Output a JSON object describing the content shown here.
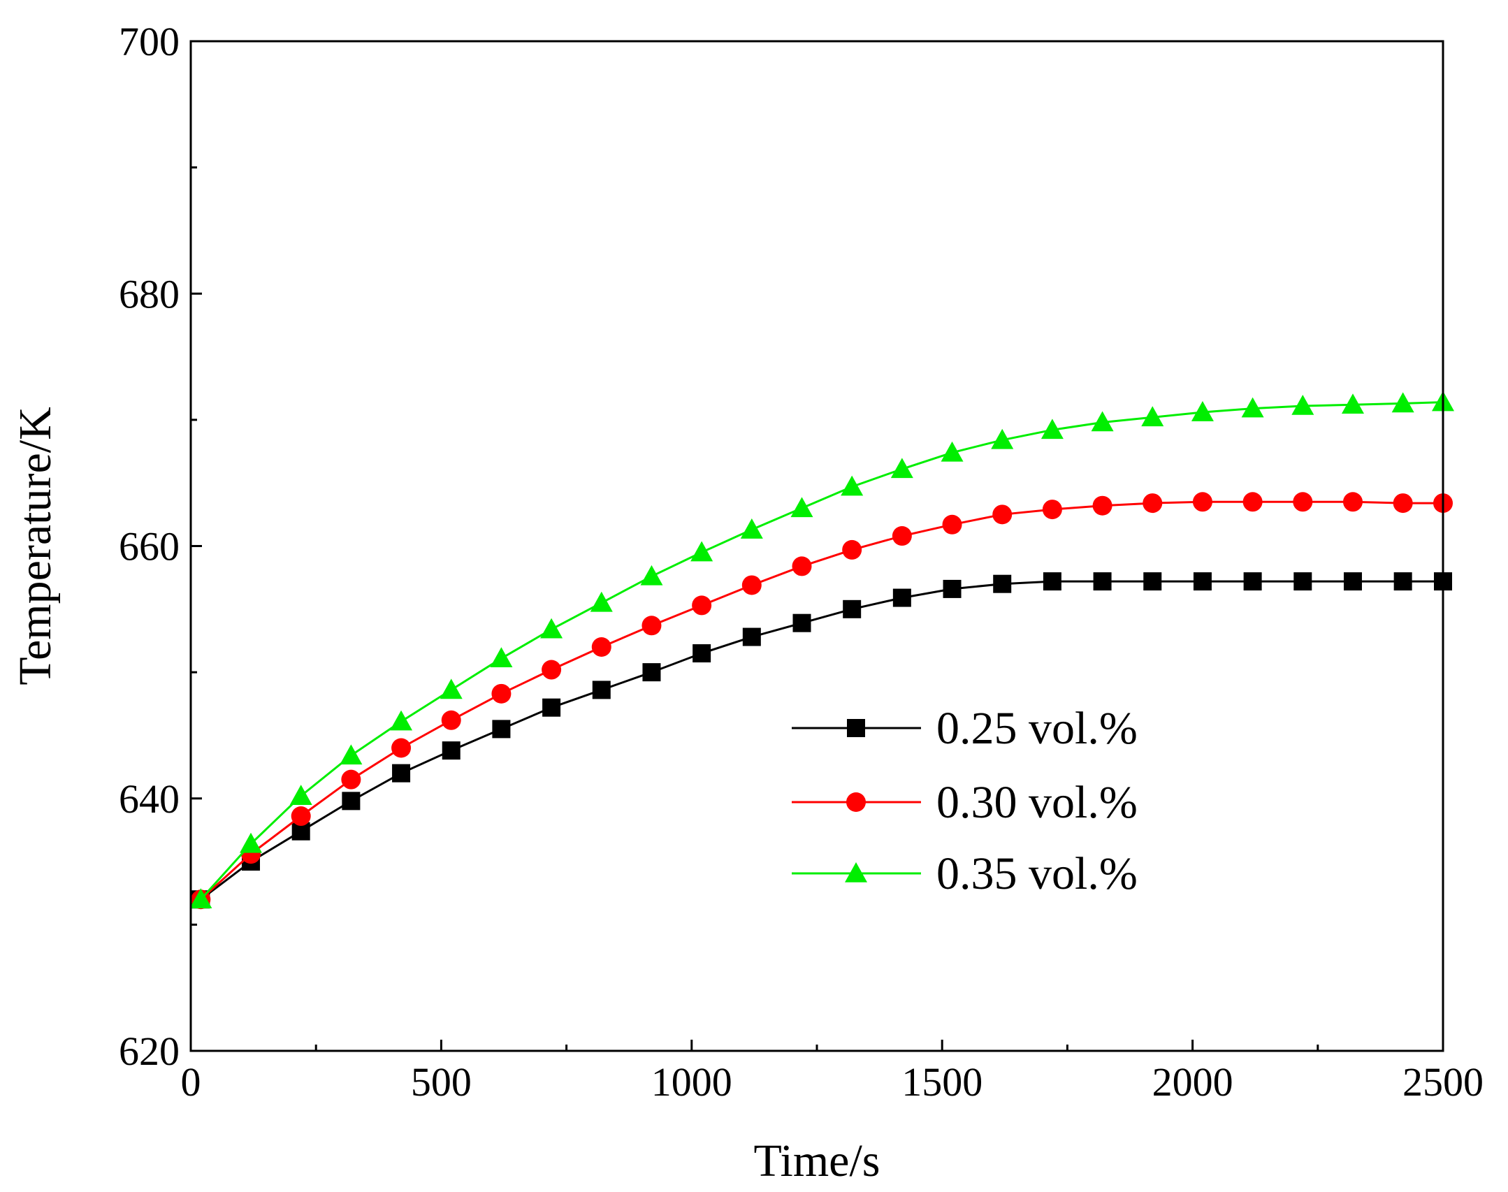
{
  "chart_data": {
    "type": "line",
    "title": "",
    "xlabel": "Time/s",
    "ylabel": "Temperature/K",
    "xlim": [
      0,
      2500
    ],
    "ylim": [
      620,
      700
    ],
    "x_ticks": [
      0,
      500,
      1000,
      1500,
      2000,
      2500
    ],
    "y_ticks": [
      620,
      640,
      660,
      680,
      700
    ],
    "x_tick_labels": [
      "0",
      "500",
      "1000",
      "1500",
      "2000",
      "2500"
    ],
    "y_tick_labels": [
      "620",
      "640",
      "660",
      "680",
      "700"
    ],
    "legend_position": "center-right",
    "grid": false,
    "x": [
      20,
      120,
      220,
      320,
      420,
      520,
      620,
      720,
      820,
      920,
      1020,
      1120,
      1220,
      1320,
      1420,
      1520,
      1620,
      1720,
      1820,
      1920,
      2020,
      2120,
      2220,
      2320,
      2420,
      2500
    ],
    "series": [
      {
        "name": "0.25 vol.%",
        "color": "#000000",
        "marker": "square",
        "values": [
          632.0,
          635.0,
          637.4,
          639.8,
          642.0,
          643.8,
          645.5,
          647.2,
          648.6,
          650.0,
          651.5,
          652.8,
          653.9,
          655.0,
          655.9,
          656.6,
          657.0,
          657.2,
          657.2,
          657.2,
          657.2,
          657.2,
          657.2,
          657.2,
          657.2,
          657.2
        ]
      },
      {
        "name": "0.30 vol.%",
        "color": "#ff0000",
        "marker": "circle",
        "values": [
          632.0,
          635.6,
          638.6,
          641.5,
          644.0,
          646.2,
          648.3,
          650.2,
          652.0,
          653.7,
          655.3,
          656.9,
          658.4,
          659.7,
          660.8,
          661.7,
          662.5,
          662.9,
          663.2,
          663.4,
          663.5,
          663.5,
          663.5,
          663.5,
          663.4,
          663.4
        ]
      },
      {
        "name": "0.35 vol.%",
        "color": "#00ee00",
        "marker": "triangle",
        "values": [
          632.0,
          636.4,
          640.2,
          643.4,
          646.1,
          648.6,
          651.1,
          653.4,
          655.5,
          657.6,
          659.5,
          661.3,
          663.0,
          664.7,
          666.1,
          667.4,
          668.4,
          669.2,
          669.8,
          670.2,
          670.6,
          670.9,
          671.1,
          671.2,
          671.3,
          671.4
        ]
      }
    ]
  }
}
